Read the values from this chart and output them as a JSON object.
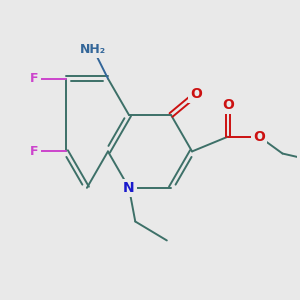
{
  "bg_color": "#e9e9e9",
  "bond_color": "#3d7068",
  "bond_width": 1.4,
  "dbo": 0.055,
  "atom_colors": {
    "N": "#1a1acc",
    "O": "#cc1111",
    "F": "#cc44cc",
    "NH2": "#336699"
  },
  "figsize": [
    3.0,
    3.0
  ],
  "dpi": 100
}
